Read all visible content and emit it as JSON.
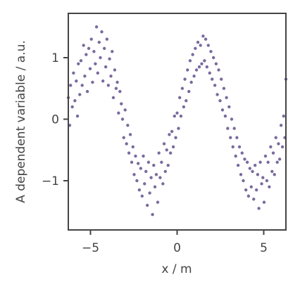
{
  "chart_data": {
    "type": "scatter",
    "title": "",
    "xlabel": "x / m",
    "ylabel": "A dependent variable / a.u.",
    "xlim": [
      -6.28,
      6.28
    ],
    "ylim": [
      -1.8,
      1.72
    ],
    "x_ticks": [
      -5,
      0,
      5
    ],
    "x_tick_labels": [
      "−5",
      "0",
      "5"
    ],
    "y_ticks": [
      -1,
      0,
      1
    ],
    "y_tick_labels": [
      "−1",
      "0",
      "1"
    ],
    "grid": false,
    "legend": "none",
    "marker_color": "#7a6a9d",
    "axis_color": "#444444",
    "underlying_function": "sin(x)",
    "noise_amplitude": 0.35,
    "series": [
      {
        "points": [
          [
            -6.28,
            0.35
          ],
          [
            -6.2,
            -0.1
          ],
          [
            -6.15,
            0.55
          ],
          [
            -6.05,
            0.2
          ],
          [
            -5.98,
            0.75
          ],
          [
            -5.9,
            0.3
          ],
          [
            -5.82,
            0.62
          ],
          [
            -5.75,
            0.05
          ],
          [
            -5.7,
            0.9
          ],
          [
            -5.62,
            0.4
          ],
          [
            -5.55,
            0.95
          ],
          [
            -5.48,
            0.55
          ],
          [
            -5.4,
            1.2
          ],
          [
            -5.33,
            0.7
          ],
          [
            -5.25,
            1.05
          ],
          [
            -5.18,
            0.45
          ],
          [
            -5.1,
            1.15
          ],
          [
            -5.02,
            0.82
          ],
          [
            -4.95,
            1.3
          ],
          [
            -4.88,
            0.6
          ],
          [
            -4.8,
            1.1
          ],
          [
            -4.72,
            0.9
          ],
          [
            -4.65,
            1.5
          ],
          [
            -4.58,
            0.75
          ],
          [
            -4.5,
            1.25
          ],
          [
            -4.43,
            1.0
          ],
          [
            -4.35,
            1.42
          ],
          [
            -4.28,
            0.62
          ],
          [
            -4.2,
            1.15
          ],
          [
            -4.12,
            0.85
          ],
          [
            -4.05,
            1.3
          ],
          [
            -3.97,
            0.55
          ],
          [
            -3.9,
            0.98
          ],
          [
            -3.82,
            0.7
          ],
          [
            -3.75,
            1.1
          ],
          [
            -3.68,
            0.35
          ],
          [
            -3.6,
            0.8
          ],
          [
            -3.52,
            0.5
          ],
          [
            -3.45,
            0.6
          ],
          [
            -3.38,
            0.1
          ],
          [
            -3.3,
            0.45
          ],
          [
            -3.22,
            0.25
          ],
          [
            -3.15,
            0.0
          ],
          [
            -3.08,
            -0.3
          ],
          [
            -3.0,
            0.15
          ],
          [
            -2.92,
            -0.4
          ],
          [
            -2.85,
            -0.1
          ],
          [
            -2.78,
            -0.55
          ],
          [
            -2.7,
            -0.25
          ],
          [
            -2.62,
            -0.7
          ],
          [
            -2.55,
            -0.45
          ],
          [
            -2.48,
            -0.9
          ],
          [
            -2.4,
            -0.6
          ],
          [
            -2.32,
            -1.0
          ],
          [
            -2.25,
            -0.72
          ],
          [
            -2.18,
            -1.15
          ],
          [
            -2.1,
            -0.8
          ],
          [
            -2.02,
            -1.25
          ],
          [
            -1.95,
            -0.6
          ],
          [
            -1.88,
            -1.05
          ],
          [
            -1.8,
            -0.85
          ],
          [
            -1.72,
            -1.4
          ],
          [
            -1.65,
            -0.7
          ],
          [
            -1.58,
            -1.2
          ],
          [
            -1.5,
            -0.95
          ],
          [
            -1.42,
            -1.55
          ],
          [
            -1.35,
            -0.75
          ],
          [
            -1.28,
            -1.1
          ],
          [
            -1.2,
            -0.9
          ],
          [
            -1.12,
            -1.35
          ],
          [
            -1.05,
            -0.55
          ],
          [
            -0.98,
            -0.95
          ],
          [
            -0.9,
            -0.7
          ],
          [
            -0.82,
            -1.05
          ],
          [
            -0.75,
            -0.4
          ],
          [
            -0.68,
            -0.85
          ],
          [
            -0.6,
            -0.5
          ],
          [
            -0.52,
            -0.75
          ],
          [
            -0.45,
            -0.25
          ],
          [
            -0.38,
            -0.55
          ],
          [
            -0.3,
            -0.2
          ],
          [
            -0.22,
            -0.45
          ],
          [
            -0.15,
            0.05
          ],
          [
            -0.08,
            -0.3
          ],
          [
            0.0,
            0.1
          ],
          [
            0.08,
            -0.15
          ],
          [
            0.15,
            0.35
          ],
          [
            0.22,
            0.05
          ],
          [
            0.3,
            0.5
          ],
          [
            0.38,
            0.2
          ],
          [
            0.45,
            0.65
          ],
          [
            0.52,
            0.3
          ],
          [
            0.6,
            0.8
          ],
          [
            0.68,
            0.45
          ],
          [
            0.75,
            0.95
          ],
          [
            0.82,
            0.6
          ],
          [
            0.9,
            1.05
          ],
          [
            0.98,
            0.7
          ],
          [
            1.05,
            1.15
          ],
          [
            1.12,
            0.8
          ],
          [
            1.2,
            1.25
          ],
          [
            1.28,
            0.85
          ],
          [
            1.35,
            1.2
          ],
          [
            1.42,
            0.9
          ],
          [
            1.5,
            1.35
          ],
          [
            1.58,
            0.95
          ],
          [
            1.65,
            1.3
          ],
          [
            1.72,
            0.85
          ],
          [
            1.8,
            1.2
          ],
          [
            1.88,
            0.75
          ],
          [
            1.95,
            1.1
          ],
          [
            2.02,
            0.65
          ],
          [
            2.1,
            1.0
          ],
          [
            2.18,
            0.55
          ],
          [
            2.25,
            0.9
          ],
          [
            2.32,
            0.4
          ],
          [
            2.4,
            0.8
          ],
          [
            2.48,
            0.3
          ],
          [
            2.55,
            0.65
          ],
          [
            2.62,
            0.15
          ],
          [
            2.7,
            0.5
          ],
          [
            2.78,
            0.05
          ],
          [
            2.85,
            0.35
          ],
          [
            2.92,
            -0.15
          ],
          [
            3.0,
            0.2
          ],
          [
            3.08,
            -0.3
          ],
          [
            3.15,
            0.0
          ],
          [
            3.22,
            -0.45
          ],
          [
            3.3,
            -0.15
          ],
          [
            3.38,
            -0.6
          ],
          [
            3.45,
            -0.3
          ],
          [
            3.52,
            -0.75
          ],
          [
            3.6,
            -0.45
          ],
          [
            3.68,
            -0.9
          ],
          [
            3.75,
            -0.55
          ],
          [
            3.82,
            -1.0
          ],
          [
            3.9,
            -0.65
          ],
          [
            3.97,
            -1.15
          ],
          [
            4.05,
            -0.7
          ],
          [
            4.12,
            -1.25
          ],
          [
            4.2,
            -0.8
          ],
          [
            4.28,
            -1.1
          ],
          [
            4.35,
            -0.85
          ],
          [
            4.42,
            -1.3
          ],
          [
            4.5,
            -0.75
          ],
          [
            4.58,
            -1.15
          ],
          [
            4.65,
            -0.9
          ],
          [
            4.72,
            -1.45
          ],
          [
            4.8,
            -0.7
          ],
          [
            4.88,
            -1.05
          ],
          [
            4.95,
            -0.95
          ],
          [
            5.02,
            -1.35
          ],
          [
            5.1,
            -0.6
          ],
          [
            5.18,
            -1.0
          ],
          [
            5.25,
            -0.7
          ],
          [
            5.32,
            -1.1
          ],
          [
            5.4,
            -0.45
          ],
          [
            5.48,
            -0.85
          ],
          [
            5.55,
            -0.55
          ],
          [
            5.62,
            -0.9
          ],
          [
            5.7,
            -0.3
          ],
          [
            5.78,
            -0.7
          ],
          [
            5.85,
            -0.4
          ],
          [
            5.92,
            -0.65
          ],
          [
            6.0,
            -0.1
          ],
          [
            6.08,
            -0.45
          ],
          [
            6.15,
            0.05
          ],
          [
            6.22,
            -0.3
          ],
          [
            6.28,
            0.65
          ]
        ]
      }
    ]
  }
}
